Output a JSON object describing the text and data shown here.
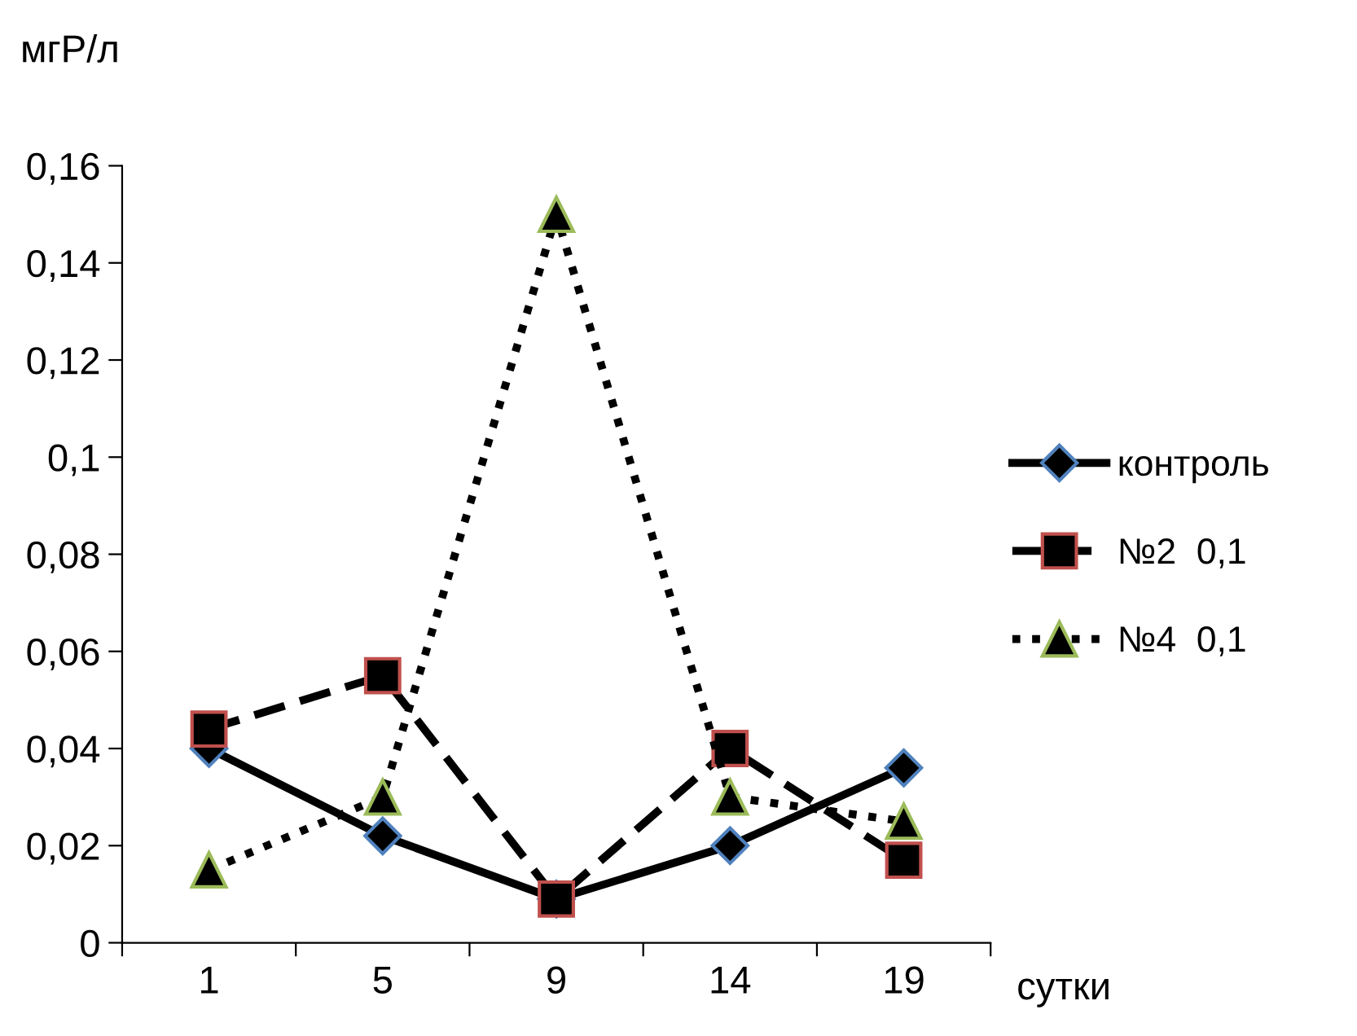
{
  "chart_data": {
    "type": "line",
    "ylabel": "мгР/л",
    "xlabel": "сутки",
    "categories": [
      "1",
      "5",
      "9",
      "14",
      "19"
    ],
    "series": [
      {
        "name": "контроль",
        "color": "#000000",
        "values": [
          0.04,
          0.022,
          0.009,
          0.02,
          0.036
        ],
        "marker": "diamond",
        "line_style": "solid"
      },
      {
        "name": "№2  0,1",
        "color": "#000000",
        "values": [
          0.044,
          0.055,
          0.009,
          0.04,
          0.017
        ],
        "marker": "square",
        "line_style": "dashed"
      },
      {
        "name": "№4  0,1",
        "color": "#000000",
        "values": [
          0.015,
          0.03,
          0.15,
          0.03,
          0.025
        ],
        "marker": "triangle",
        "line_style": "dotted"
      }
    ],
    "ylim": [
      0,
      0.16
    ],
    "yticks": [
      {
        "value": 0,
        "label": "0"
      },
      {
        "value": 0.02,
        "label": "0,02"
      },
      {
        "value": 0.04,
        "label": "0,04"
      },
      {
        "value": 0.06,
        "label": "0,06"
      },
      {
        "value": 0.08,
        "label": "0,08"
      },
      {
        "value": 0.1,
        "label": "0,1"
      },
      {
        "value": 0.12,
        "label": "0,12"
      },
      {
        "value": 0.14,
        "label": "0,14"
      },
      {
        "value": 0.16,
        "label": "0,16"
      }
    ],
    "grid": false,
    "legend": "right"
  }
}
